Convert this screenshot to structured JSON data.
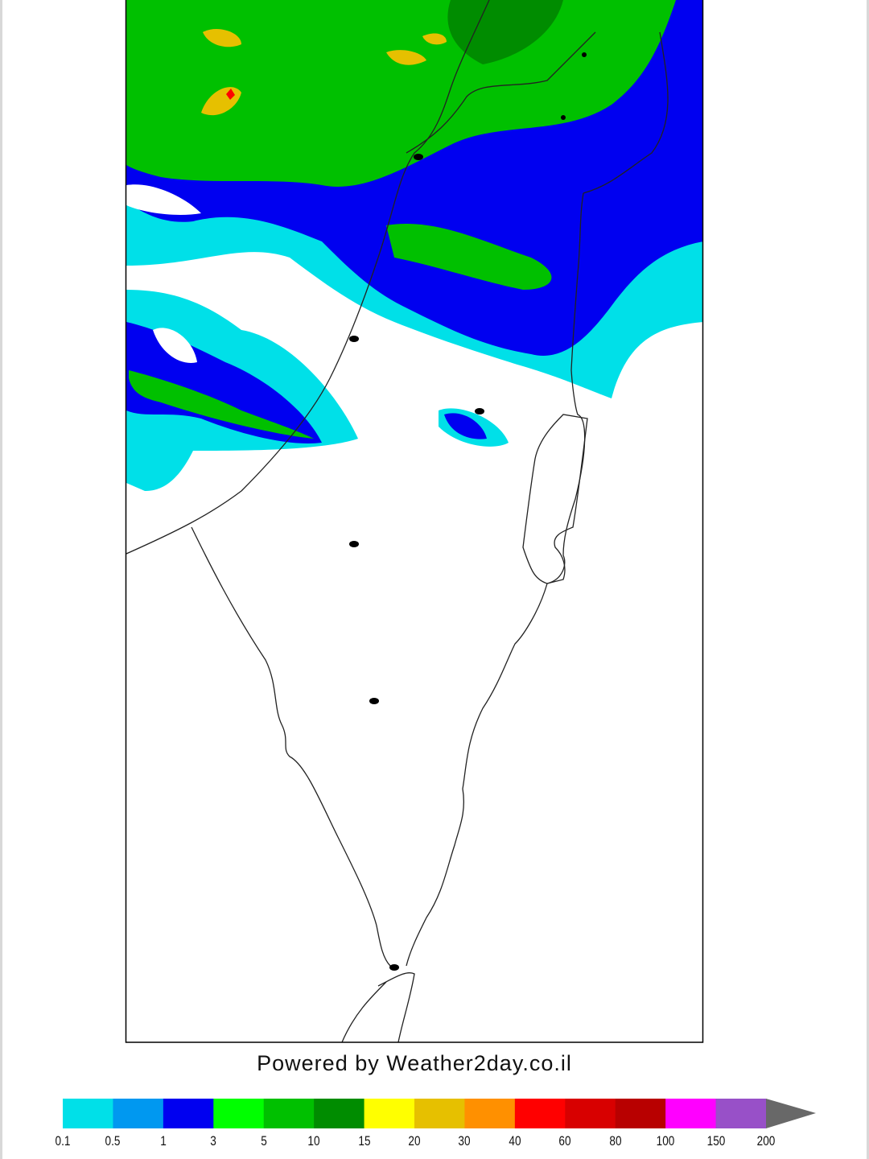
{
  "credit": "Powered by Weather2day.co.il",
  "legend": {
    "ticks": [
      "0.1",
      "0.5",
      "1",
      "3",
      "5",
      "10",
      "15",
      "20",
      "30",
      "40",
      "60",
      "80",
      "100",
      "150",
      "200"
    ],
    "colors": [
      "#00e0e8",
      "#0098f0",
      "#0000f0",
      "#00ff00",
      "#00c000",
      "#008c00",
      "#ffff00",
      "#e6c000",
      "#ff9000",
      "#ff0000",
      "#d80000",
      "#b80000",
      "#ff00ff",
      "#9850c8"
    ],
    "overflow_color": "#686868"
  },
  "map": {
    "frame_color": "#000000",
    "city_markers": 8
  }
}
